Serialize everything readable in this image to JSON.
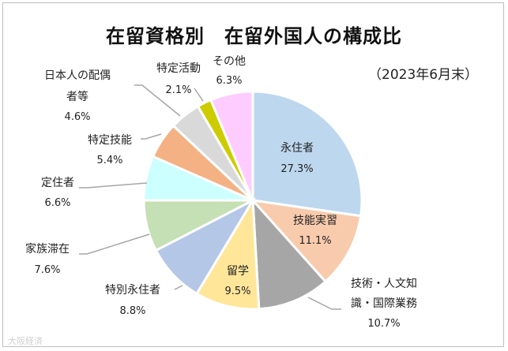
{
  "chart_data": {
    "type": "pie",
    "title": "在留資格別　在留外国人の構成比",
    "subtitle": "（2023年6月末）",
    "unit": "%",
    "slices": [
      {
        "label": "永住者",
        "value": 27.3,
        "value_label": "27.3%",
        "color": "#BDD7EE"
      },
      {
        "label": "技能実習",
        "value": 11.1,
        "value_label": "11.1%",
        "color": "#F8CBAD"
      },
      {
        "label": "技術・人文知識・国際業務",
        "label_lines": [
          "技術・人文知",
          "識・国際業務"
        ],
        "value": 10.7,
        "value_label": "10.7%",
        "color": "#A6A6A6"
      },
      {
        "label": "留学",
        "value": 9.5,
        "value_label": "9.5%",
        "color": "#FFE699"
      },
      {
        "label": "特別永住者",
        "value": 8.8,
        "value_label": "8.8%",
        "color": "#B4C7E7"
      },
      {
        "label": "家族滞在",
        "value": 7.6,
        "value_label": "7.6%",
        "color": "#C5E0B4"
      },
      {
        "label": "定住者",
        "value": 6.6,
        "value_label": "6.6%",
        "color": "#CCFFFF"
      },
      {
        "label": "特定技能",
        "value": 5.4,
        "value_label": "5.4%",
        "color": "#F4B183"
      },
      {
        "label": "日本人の配偶者等",
        "label_lines": [
          "日本人の配偶",
          "者等"
        ],
        "value": 4.6,
        "value_label": "4.6%",
        "color": "#D9D9D9"
      },
      {
        "label": "特定活動",
        "value": 2.1,
        "value_label": "2.1%",
        "color": "#CCCC00"
      },
      {
        "label": "その他",
        "value": 6.3,
        "value_label": "6.3%",
        "color": "#FFCCFF"
      }
    ]
  },
  "watermark": "大阪経済"
}
